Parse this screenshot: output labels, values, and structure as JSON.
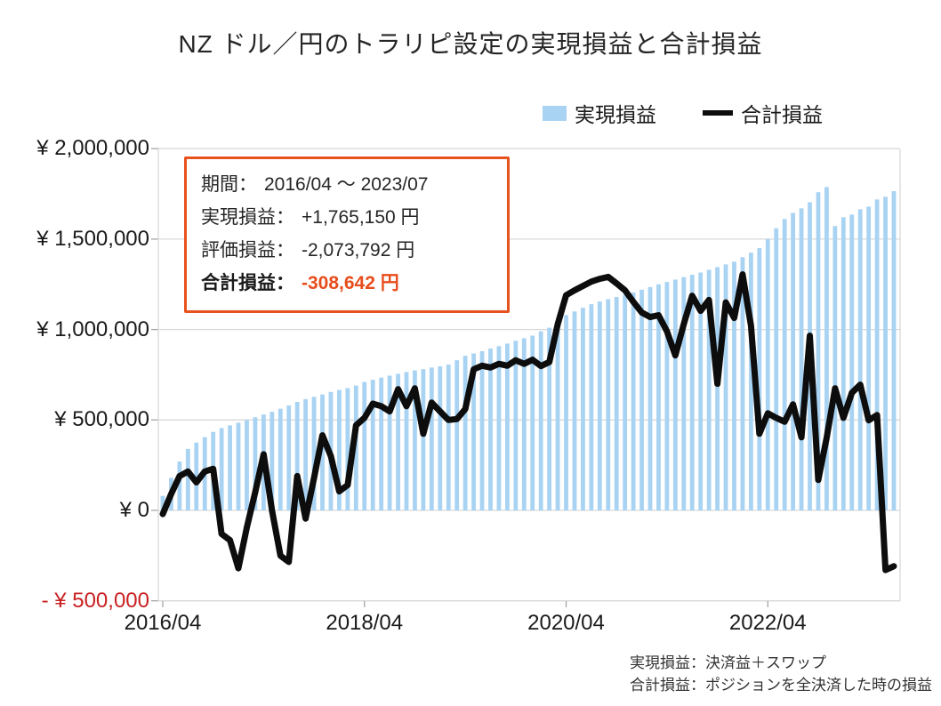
{
  "title": "NZ ドル／円のトラリピ設定の実現損益と合計損益",
  "legend": {
    "realized_label": "実現損益",
    "total_label": "合計損益"
  },
  "info_box": {
    "period_label": "期間：",
    "period_value": "2016/04 ～ 2023/07",
    "realized_label": "実現損益：",
    "realized_value": "+1,765,150 円",
    "valuation_label": "評価損益：",
    "valuation_value": "-2,073,792 円",
    "total_label": "合計損益：",
    "total_value": "-308,642 円"
  },
  "footnotes": {
    "line1": "実現損益：決済益＋スワップ",
    "line2": "合計損益：ポジションを全決済した時の損益"
  },
  "colors": {
    "bar": "#a9d3f2",
    "line": "#0d0d0d",
    "grid": "#d9d9d9",
    "tick": "#a6a6a6",
    "negative_label": "#c92121",
    "accent_orange": "#e8521c"
  },
  "chart_data": {
    "type": "bar",
    "overlay": "line",
    "title": "NZ ドル／円のトラリピ設定の実現損益と合計損益",
    "xlabel": "",
    "ylabel": "",
    "ylim": [
      -500000,
      2000000
    ],
    "y_tick_step": 500000,
    "grid": true,
    "legend_position": "top-right",
    "y_axis_labels": [
      "¥ 2,000,000",
      "¥ 1,500,000",
      "¥ 1,000,000",
      "¥ 500,000",
      "¥ 0",
      "- ¥ 500,000"
    ],
    "y_axis_values": [
      2000000,
      1500000,
      1000000,
      500000,
      0,
      -500000
    ],
    "x_axis_labels": [
      "2016/04",
      "2018/04",
      "2020/04",
      "2022/04"
    ],
    "x_axis_label_month_indices": [
      0,
      24,
      48,
      72
    ],
    "categories": [
      "2016/04",
      "2016/05",
      "2016/06",
      "2016/07",
      "2016/08",
      "2016/09",
      "2016/10",
      "2016/11",
      "2016/12",
      "2017/01",
      "2017/02",
      "2017/03",
      "2017/04",
      "2017/05",
      "2017/06",
      "2017/07",
      "2017/08",
      "2017/09",
      "2017/10",
      "2017/11",
      "2017/12",
      "2018/01",
      "2018/02",
      "2018/03",
      "2018/04",
      "2018/05",
      "2018/06",
      "2018/07",
      "2018/08",
      "2018/09",
      "2018/10",
      "2018/11",
      "2018/12",
      "2019/01",
      "2019/02",
      "2019/03",
      "2019/04",
      "2019/05",
      "2019/06",
      "2019/07",
      "2019/08",
      "2019/09",
      "2019/10",
      "2019/11",
      "2019/12",
      "2020/01",
      "2020/02",
      "2020/03",
      "2020/04",
      "2020/05",
      "2020/06",
      "2020/07",
      "2020/08",
      "2020/09",
      "2020/10",
      "2020/11",
      "2020/12",
      "2021/01",
      "2021/02",
      "2021/03",
      "2021/04",
      "2021/05",
      "2021/06",
      "2021/07",
      "2021/08",
      "2021/09",
      "2021/10",
      "2021/11",
      "2021/12",
      "2022/01",
      "2022/02",
      "2022/03",
      "2022/04",
      "2022/05",
      "2022/06",
      "2022/07",
      "2022/08",
      "2022/09",
      "2022/10",
      "2022/11",
      "2022/12",
      "2023/01",
      "2023/02",
      "2023/03",
      "2023/04",
      "2023/05",
      "2023/06",
      "2023/07"
    ],
    "series": [
      {
        "name": "実現損益",
        "kind": "bar",
        "values": [
          80000,
          180000,
          270000,
          340000,
          375000,
          405000,
          434000,
          455000,
          470000,
          485000,
          500000,
          515000,
          530000,
          545000,
          562000,
          580000,
          600000,
          615000,
          628000,
          641000,
          655000,
          666000,
          676000,
          690000,
          710000,
          722000,
          734000,
          745000,
          755000,
          765000,
          774000,
          781000,
          790000,
          797000,
          806000,
          830000,
          855000,
          868000,
          880000,
          895000,
          908000,
          922000,
          938000,
          952000,
          966000,
          990000,
          1010000,
          1050000,
          1080000,
          1100000,
          1120000,
          1140000,
          1155000,
          1168000,
          1180000,
          1192000,
          1205000,
          1220000,
          1235000,
          1250000,
          1263000,
          1276000,
          1290000,
          1303000,
          1315000,
          1330000,
          1345000,
          1360000,
          1375000,
          1400000,
          1425000,
          1450000,
          1500000,
          1560000,
          1611000,
          1645000,
          1670000,
          1704000,
          1759000,
          1788000,
          1572000,
          1621000,
          1636000,
          1665000,
          1680000,
          1719000,
          1734000,
          1765150
        ]
      },
      {
        "name": "合計損益",
        "kind": "line",
        "values": [
          -20000,
          90000,
          190000,
          215000,
          155000,
          215000,
          230000,
          -130000,
          -165000,
          -320000,
          -95000,
          100000,
          310000,
          0,
          -250000,
          -285000,
          190000,
          -45000,
          180000,
          415000,
          300000,
          105000,
          140000,
          470000,
          512000,
          590000,
          576000,
          547000,
          670000,
          576000,
          675000,
          424000,
          596000,
          547000,
          500000,
          505000,
          560000,
          780000,
          800000,
          790000,
          810000,
          800000,
          830000,
          810000,
          833000,
          798000,
          820000,
          1030000,
          1190000,
          1217000,
          1241000,
          1265000,
          1280000,
          1291000,
          1255000,
          1217000,
          1153000,
          1094000,
          1069000,
          1079000,
          990000,
          857000,
          1030000,
          1187000,
          1103000,
          1163000,
          700000,
          1150000,
          1064000,
          1305000,
          1020000,
          424000,
          537000,
          512000,
          490000,
          586000,
          404000,
          966000,
          168000,
          400000,
          675000,
          512000,
          650000,
          695000,
          498000,
          527000,
          -330000,
          -308642
        ]
      }
    ]
  }
}
